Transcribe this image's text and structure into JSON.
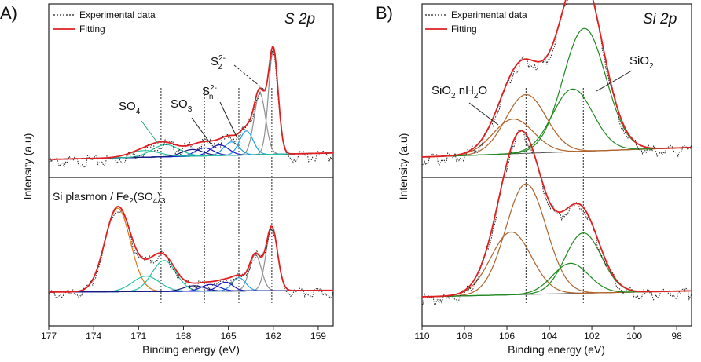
{
  "colors": {
    "experimental": "#222222",
    "fitting": "#e02020",
    "baseline": "#555555",
    "green": "#1f8a1f",
    "orange": "#e07a1a",
    "brown": "#b0632a",
    "teal": "#25c4a0",
    "blue": "#1a1acc",
    "navy": "#1a1a7a",
    "sky": "#1ea0e6",
    "gray": "#909090"
  },
  "chart_data": [
    {
      "panel": "A)",
      "type": "line",
      "title": "S 2p",
      "xlabel": "Binding energy (eV)",
      "ylabel": "Intensity (a.u)",
      "xlim": [
        177,
        158
      ],
      "x_ticks": [
        177,
        174,
        171,
        168,
        165,
        162,
        159
      ],
      "legend": [
        "Experimental data",
        "Fitting"
      ],
      "reference_lines": [
        169.5,
        166.6,
        164.3,
        162.1
      ],
      "annotations": [
        {
          "text": "SO",
          "sub": "4",
          "sup": ""
        },
        {
          "text": "SO",
          "sub": "3",
          "sup": ""
        },
        {
          "text": "S",
          "sub": "n",
          "sup": "2-"
        },
        {
          "text": "S",
          "sub": "2",
          "sup": "2-"
        }
      ],
      "subplots": [
        {
          "name": "top",
          "peaks": [
            {
              "center": 162.0,
              "height": 0.78,
              "width": 0.32,
              "color": "gray"
            },
            {
              "center": 162.9,
              "height": 0.46,
              "width": 0.38,
              "color": "gray"
            },
            {
              "center": 163.8,
              "height": 0.18,
              "width": 0.45,
              "color": "sky"
            },
            {
              "center": 164.8,
              "height": 0.1,
              "width": 0.5,
              "color": "sky"
            },
            {
              "center": 165.6,
              "height": 0.08,
              "width": 0.6,
              "color": "blue"
            },
            {
              "center": 166.6,
              "height": 0.06,
              "width": 0.6,
              "color": "blue"
            },
            {
              "center": 167.4,
              "height": 0.05,
              "width": 0.7,
              "color": "navy"
            },
            {
              "center": 169.2,
              "height": 0.09,
              "width": 0.9,
              "color": "teal"
            },
            {
              "center": 170.6,
              "height": 0.05,
              "width": 1.0,
              "color": "teal"
            }
          ]
        },
        {
          "name": "bottom",
          "peaks": [
            {
              "center": 172.4,
              "height": 0.76,
              "width": 0.85,
              "color": "orange"
            },
            {
              "center": 169.3,
              "height": 0.28,
              "width": 0.8,
              "color": "teal"
            },
            {
              "center": 170.5,
              "height": 0.14,
              "width": 0.9,
              "color": "teal"
            },
            {
              "center": 162.1,
              "height": 0.58,
              "width": 0.38,
              "color": "gray"
            },
            {
              "center": 163.2,
              "height": 0.33,
              "width": 0.4,
              "color": "gray"
            },
            {
              "center": 164.3,
              "height": 0.12,
              "width": 0.45,
              "color": "sky"
            },
            {
              "center": 165.2,
              "height": 0.08,
              "width": 0.5,
              "color": "blue"
            },
            {
              "center": 166.2,
              "height": 0.06,
              "width": 0.6,
              "color": "blue"
            },
            {
              "center": 167.3,
              "height": 0.05,
              "width": 0.7,
              "color": "navy"
            }
          ],
          "annotation": "Si plasmon / Fe2(SO4)3"
        }
      ]
    },
    {
      "panel": "B)",
      "type": "line",
      "title": "Si 2p",
      "xlabel": "Binding energy (eV)",
      "ylabel": "Intensity (a.u)",
      "xlim": [
        110,
        97.3
      ],
      "x_ticks": [
        110,
        108,
        106,
        104,
        102,
        100,
        98
      ],
      "legend": [
        "Experimental data",
        "Fitting"
      ],
      "reference_lines": [
        105.1,
        102.4
      ],
      "annotations": [
        {
          "text": "SiO",
          "sub": "2",
          "sup": "",
          "tail": " nH",
          "sub2": "2",
          "tail2": "O"
        },
        {
          "text": "SiO",
          "sub": "2",
          "sup": ""
        }
      ],
      "subplots": [
        {
          "name": "top",
          "peaks": [
            {
              "center": 105.7,
              "height": 0.26,
              "width": 0.95,
              "color": "brown"
            },
            {
              "center": 105.1,
              "height": 0.44,
              "width": 0.95,
              "color": "brown"
            },
            {
              "center": 102.9,
              "height": 0.47,
              "width": 0.95,
              "color": "green"
            },
            {
              "center": 102.35,
              "height": 0.92,
              "width": 1.0,
              "color": "green"
            }
          ]
        },
        {
          "name": "bottom",
          "peaks": [
            {
              "center": 105.8,
              "height": 0.5,
              "width": 0.95,
              "color": "brown"
            },
            {
              "center": 105.1,
              "height": 0.88,
              "width": 0.95,
              "color": "brown"
            },
            {
              "center": 103.0,
              "height": 0.24,
              "width": 0.85,
              "color": "green"
            },
            {
              "center": 102.4,
              "height": 0.48,
              "width": 0.85,
              "color": "green"
            }
          ]
        }
      ]
    }
  ]
}
